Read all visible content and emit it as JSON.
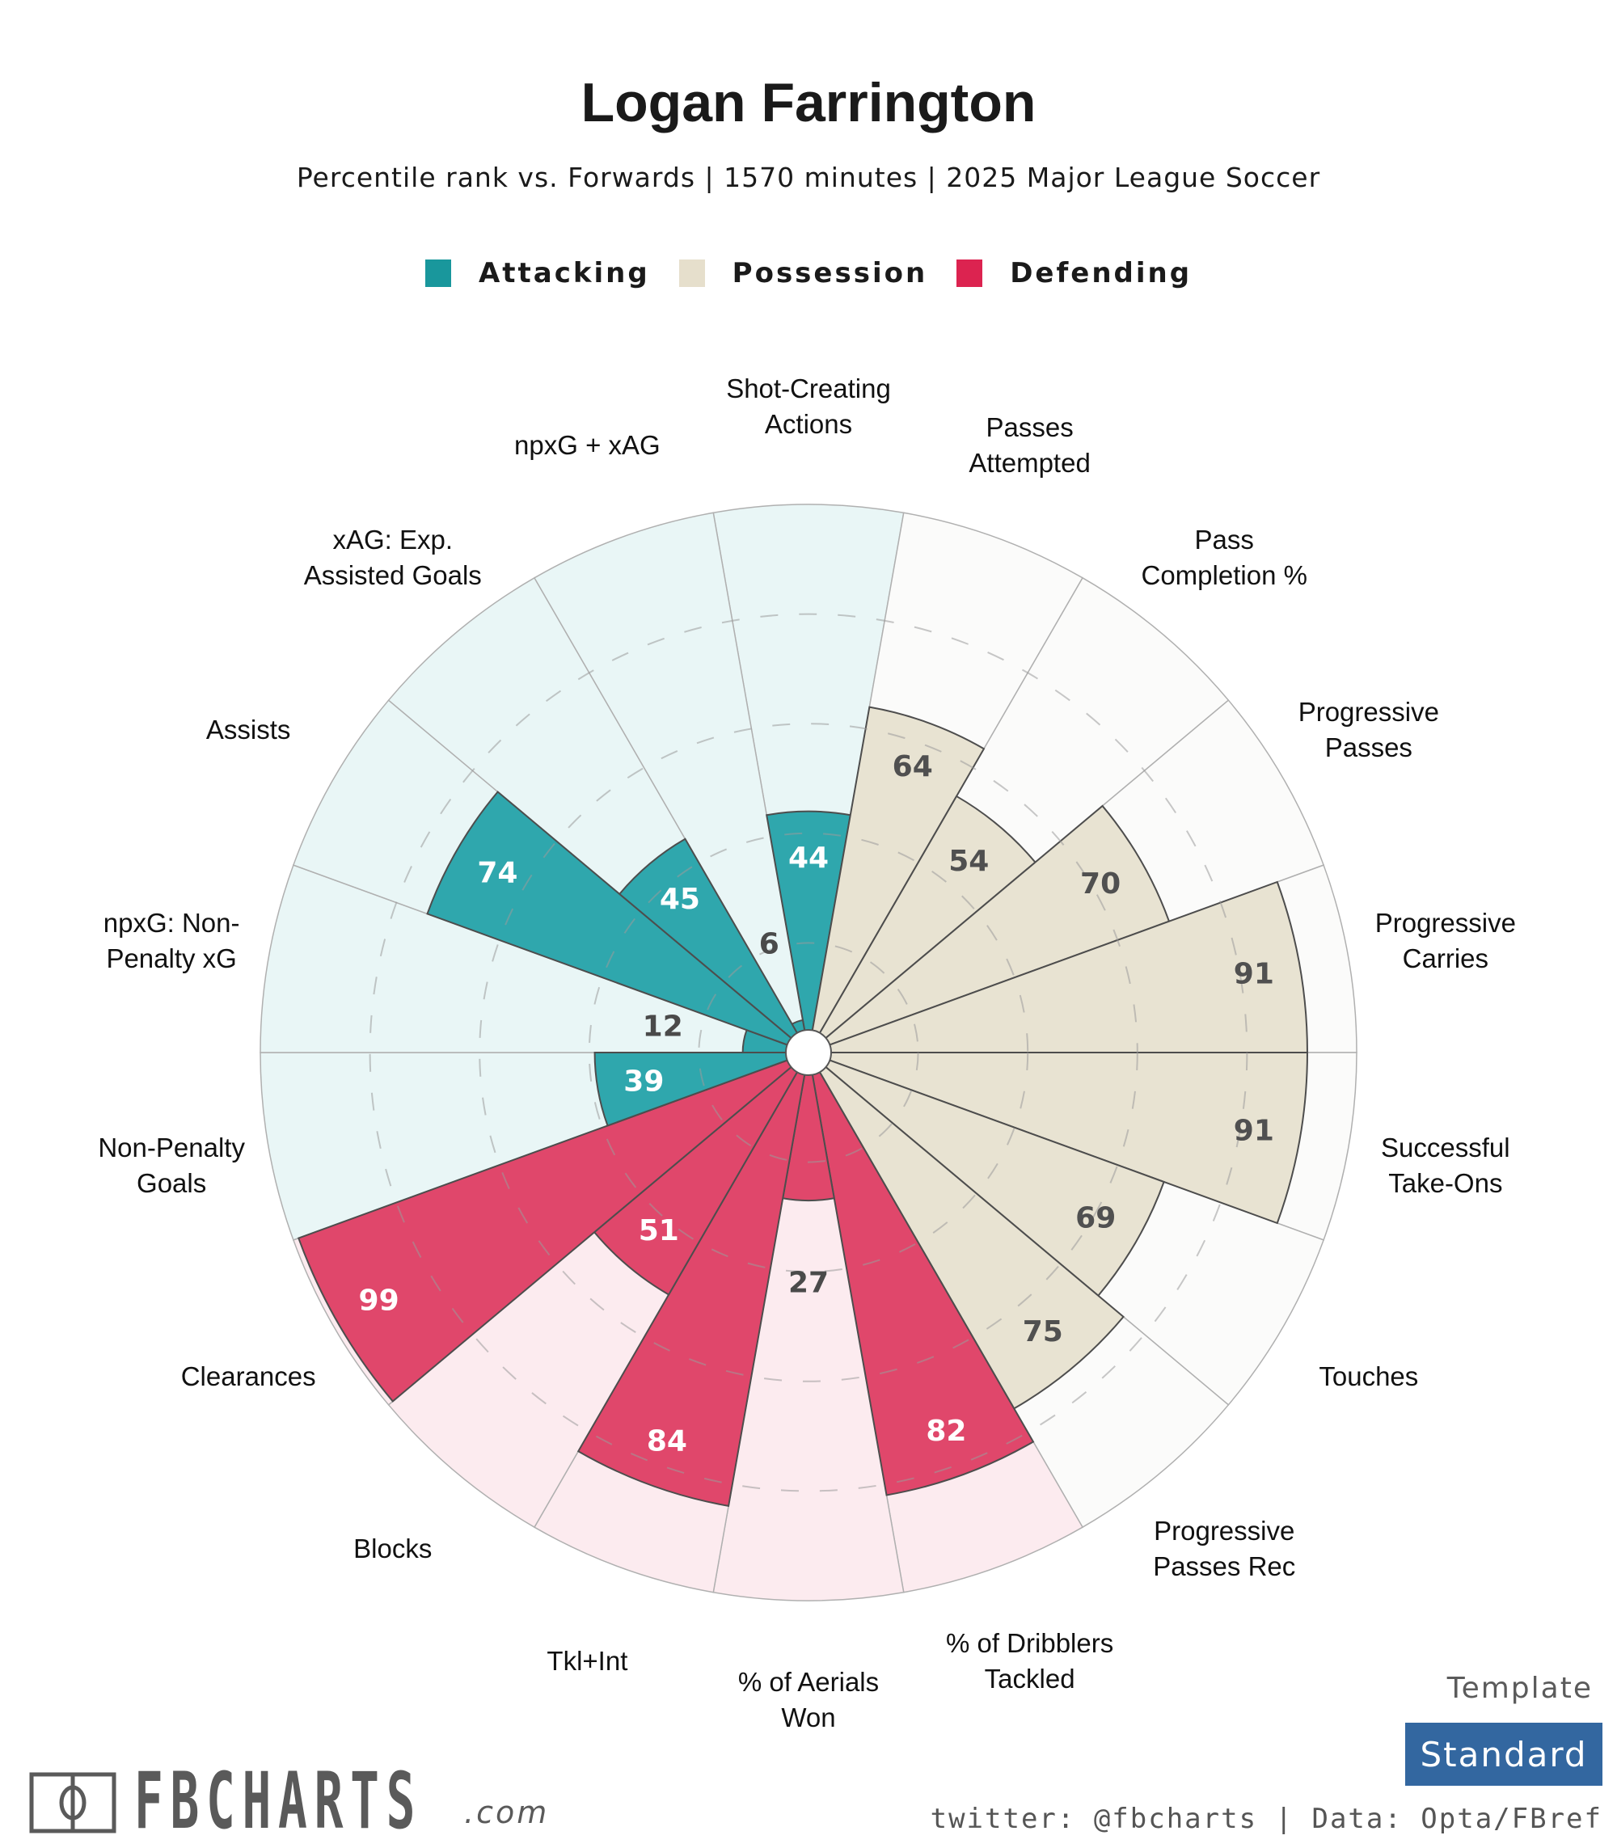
{
  "header": {
    "title": "Logan Farrington",
    "subtitle": "Percentile rank vs. Forwards | 1570 minutes | 2025 Major League Soccer"
  },
  "legend": [
    {
      "label": "Attacking",
      "color": "#19979c"
    },
    {
      "label": "Possession",
      "color": "#e6dfcc"
    },
    {
      "label": "Defending",
      "color": "#dc2350"
    }
  ],
  "colors": {
    "Attacking": {
      "fill": "#2fa7ad",
      "bg": "#e9f6f6",
      "text": "#ffffff"
    },
    "Possession": {
      "fill": "#e8e3d2",
      "bg": "#fbfbfa",
      "text": "#505050"
    },
    "Defending": {
      "fill": "#e0476b",
      "bg": "#fcebef",
      "text": "#ffffff"
    },
    "low_value_text": "#4a4a4a"
  },
  "chart_data": {
    "type": "polar-bar",
    "title": "Logan Farrington",
    "subtitle": "Percentile rank vs. Forwards | 1570 minutes | 2025 Major League Soccer",
    "radial_range": [
      0,
      100
    ],
    "gridlines": [
      20,
      40,
      60,
      80
    ],
    "start": "top, clockwise",
    "categories": [
      {
        "label": "Shot-Creating\nActions",
        "value": 44,
        "group": "Attacking"
      },
      {
        "label": "Passes\nAttempted",
        "value": 64,
        "group": "Possession"
      },
      {
        "label": "Pass\nCompletion %",
        "value": 54,
        "group": "Possession"
      },
      {
        "label": "Progressive\nPasses",
        "value": 70,
        "group": "Possession"
      },
      {
        "label": "Progressive\nCarries",
        "value": 91,
        "group": "Possession"
      },
      {
        "label": "Successful\nTake-Ons",
        "value": 91,
        "group": "Possession"
      },
      {
        "label": "Touches",
        "value": 69,
        "group": "Possession"
      },
      {
        "label": "Progressive\nPasses Rec",
        "value": 75,
        "group": "Possession"
      },
      {
        "label": "% of Dribblers\nTackled",
        "value": 82,
        "group": "Defending"
      },
      {
        "label": "% of Aerials\nWon",
        "value": 27,
        "group": "Defending"
      },
      {
        "label": "Tkl+Int",
        "value": 84,
        "group": "Defending"
      },
      {
        "label": "Blocks",
        "value": 51,
        "group": "Defending"
      },
      {
        "label": "Clearances",
        "value": 99,
        "group": "Defending"
      },
      {
        "label": "Non-Penalty\nGoals",
        "value": 39,
        "group": "Attacking"
      },
      {
        "label": "npxG: Non-\nPenalty xG",
        "value": 12,
        "group": "Attacking"
      },
      {
        "label": "Assists",
        "value": 74,
        "group": "Attacking"
      },
      {
        "label": "xAG: Exp.\nAssisted Goals",
        "value": 45,
        "group": "Attacking"
      },
      {
        "label": "npxG + xAG",
        "value": 6,
        "group": "Attacking"
      }
    ]
  },
  "footer": {
    "logo_text": "FBCHARTS",
    "logo_suffix": ".com",
    "template_label": "Template",
    "template_value": "Standard",
    "credits": "twitter: @fbcharts | Data: Opta/FBref"
  }
}
